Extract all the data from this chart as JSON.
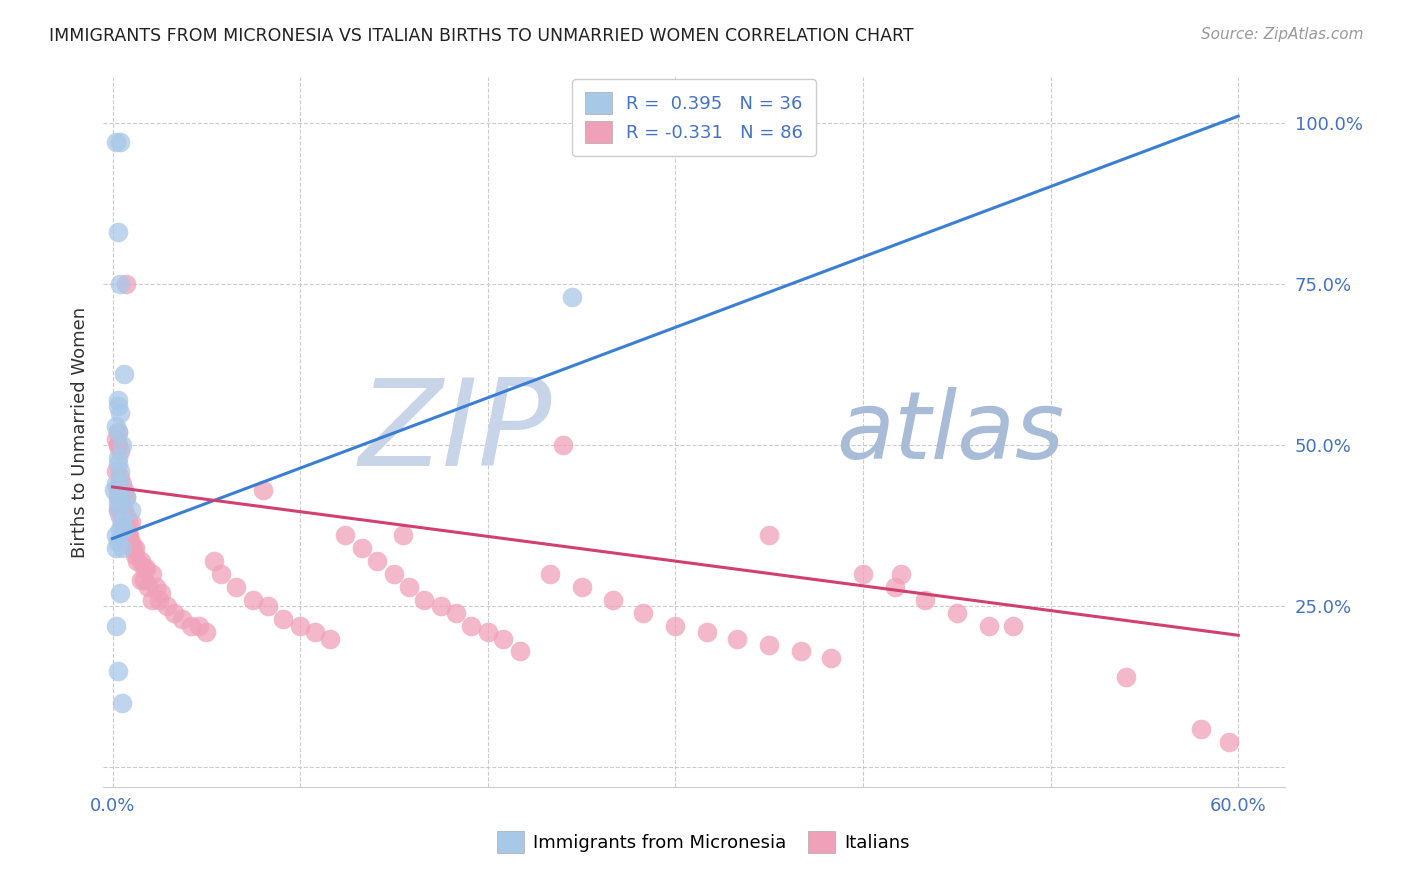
{
  "title": "IMMIGRANTS FROM MICRONESIA VS ITALIAN BIRTHS TO UNMARRIED WOMEN CORRELATION CHART",
  "source": "Source: ZipAtlas.com",
  "ylabel": "Births to Unmarried Women",
  "legend_blue_label": "Immigrants from Micronesia",
  "legend_pink_label": "Italians",
  "blue_color": "#a8c8e8",
  "blue_line_color": "#3a7fd4",
  "pink_color": "#f0a0b8",
  "pink_line_color": "#d04070",
  "watermark_color_zip": "#c0cce0",
  "watermark_color_atlas": "#a8c0e0",
  "blue_scatter_x": [
    0.002,
    0.004,
    0.003,
    0.004,
    0.006,
    0.003,
    0.003,
    0.004,
    0.002,
    0.003,
    0.005,
    0.003,
    0.003,
    0.004,
    0.004,
    0.002,
    0.001,
    0.003,
    0.003,
    0.007,
    0.003,
    0.003,
    0.01,
    0.005,
    0.006,
    0.002,
    0.003,
    0.005,
    0.002,
    0.005,
    0.004,
    0.245,
    0.003,
    0.005,
    0.004,
    0.002
  ],
  "blue_scatter_y": [
    0.97,
    0.97,
    0.83,
    0.75,
    0.61,
    0.57,
    0.56,
    0.55,
    0.53,
    0.52,
    0.5,
    0.48,
    0.47,
    0.46,
    0.44,
    0.44,
    0.43,
    0.43,
    0.42,
    0.42,
    0.41,
    0.4,
    0.4,
    0.38,
    0.37,
    0.36,
    0.35,
    0.34,
    0.34,
    0.38,
    0.27,
    0.73,
    0.15,
    0.1,
    0.37,
    0.22
  ],
  "pink_scatter_x": [
    0.002,
    0.003,
    0.004,
    0.003,
    0.002,
    0.004,
    0.005,
    0.004,
    0.006,
    0.003,
    0.007,
    0.004,
    0.004,
    0.003,
    0.005,
    0.006,
    0.004,
    0.007,
    0.006,
    0.008,
    0.01,
    0.006,
    0.007,
    0.005,
    0.008,
    0.009,
    0.007,
    0.009,
    0.01,
    0.012,
    0.011,
    0.012,
    0.013,
    0.015,
    0.017,
    0.018,
    0.021,
    0.015,
    0.017,
    0.019,
    0.023,
    0.026,
    0.021,
    0.025,
    0.029,
    0.033,
    0.037,
    0.042,
    0.046,
    0.05,
    0.054,
    0.058,
    0.066,
    0.075,
    0.083,
    0.091,
    0.1,
    0.108,
    0.116,
    0.124,
    0.133,
    0.141,
    0.15,
    0.158,
    0.166,
    0.175,
    0.183,
    0.191,
    0.2,
    0.208,
    0.217,
    0.233,
    0.25,
    0.267,
    0.283,
    0.3,
    0.317,
    0.333,
    0.35,
    0.367,
    0.383,
    0.4,
    0.417,
    0.433,
    0.45,
    0.467
  ],
  "pink_scatter_y": [
    0.51,
    0.5,
    0.49,
    0.5,
    0.46,
    0.45,
    0.44,
    0.43,
    0.43,
    0.42,
    0.42,
    0.42,
    0.41,
    0.4,
    0.4,
    0.4,
    0.39,
    0.39,
    0.38,
    0.38,
    0.38,
    0.37,
    0.37,
    0.36,
    0.36,
    0.36,
    0.35,
    0.35,
    0.35,
    0.34,
    0.34,
    0.33,
    0.32,
    0.32,
    0.31,
    0.31,
    0.3,
    0.29,
    0.29,
    0.28,
    0.28,
    0.27,
    0.26,
    0.26,
    0.25,
    0.24,
    0.23,
    0.22,
    0.22,
    0.21,
    0.32,
    0.3,
    0.28,
    0.26,
    0.25,
    0.23,
    0.22,
    0.21,
    0.2,
    0.36,
    0.34,
    0.32,
    0.3,
    0.28,
    0.26,
    0.25,
    0.24,
    0.22,
    0.21,
    0.2,
    0.18,
    0.3,
    0.28,
    0.26,
    0.24,
    0.22,
    0.21,
    0.2,
    0.19,
    0.18,
    0.17,
    0.3,
    0.28,
    0.26,
    0.24,
    0.22
  ],
  "extra_pink_x": [
    0.003,
    0.08,
    0.007,
    0.24,
    0.35,
    0.155,
    0.42,
    0.48,
    0.54,
    0.58,
    0.595
  ],
  "extra_pink_y": [
    0.52,
    0.43,
    0.75,
    0.5,
    0.36,
    0.36,
    0.3,
    0.22,
    0.14,
    0.06,
    0.04
  ],
  "blue_line_x": [
    0.0,
    0.6
  ],
  "blue_line_y": [
    0.355,
    1.01
  ],
  "pink_line_x": [
    0.0,
    0.6
  ],
  "pink_line_y": [
    0.435,
    0.205
  ],
  "xlim_min": -0.005,
  "xlim_max": 0.625,
  "ylim_min": -0.03,
  "ylim_max": 1.07,
  "xtick_positions": [
    0.0,
    0.1,
    0.2,
    0.3,
    0.4,
    0.5,
    0.6
  ],
  "ytick_positions": [
    0.0,
    0.25,
    0.5,
    0.75,
    1.0
  ],
  "ytick_labels": [
    "",
    "25.0%",
    "50.0%",
    "75.0%",
    "100.0%"
  ]
}
